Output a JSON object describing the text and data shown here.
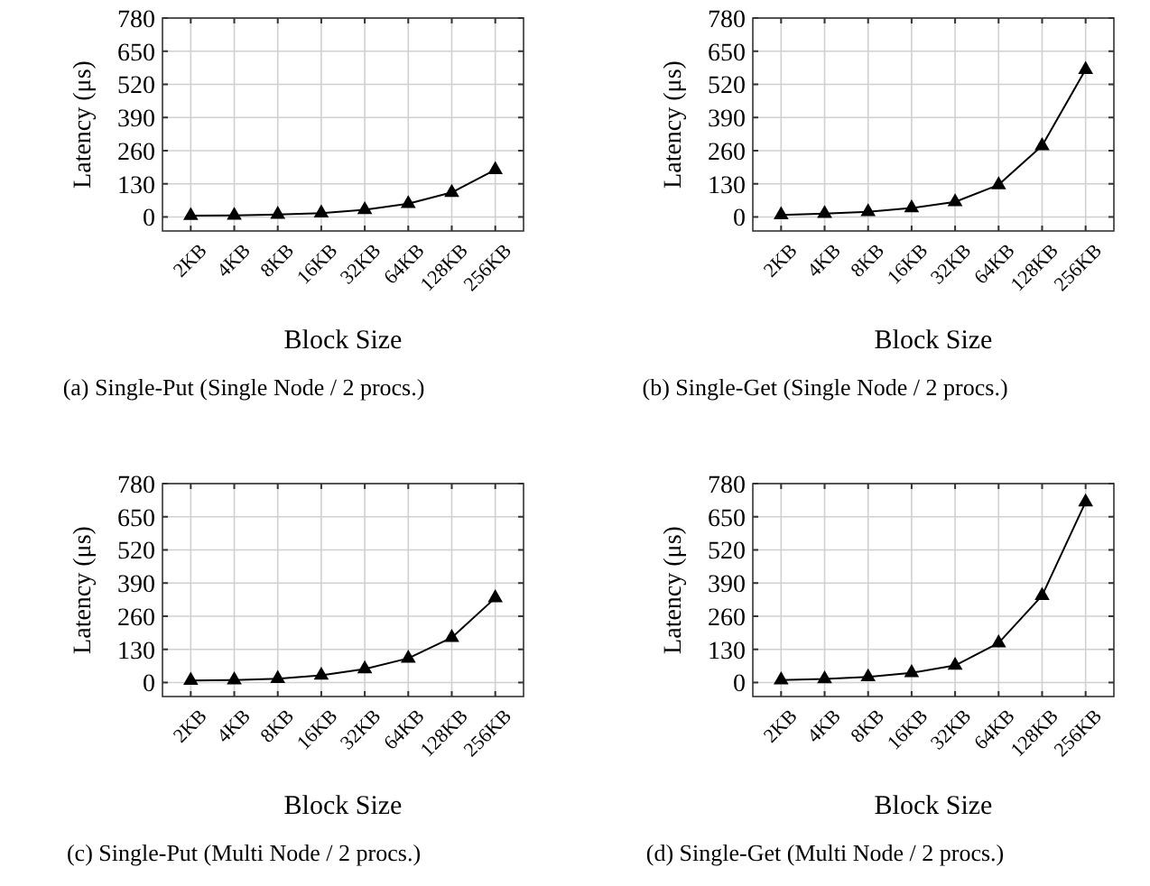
{
  "chart_data": [
    {
      "type": "line",
      "title": "(a) Single-Put (Single Node / 2 procs.)",
      "xlabel": "Block Size",
      "ylabel": "Latency (μs)",
      "categories": [
        "2KB",
        "4KB",
        "8KB",
        "16KB",
        "32KB",
        "64KB",
        "128KB",
        "256KB"
      ],
      "series": [
        {
          "color": "#000000",
          "values": [
            5,
            6,
            10,
            15,
            28,
            52,
            96,
            185
          ]
        }
      ],
      "ylim": [
        -55,
        780
      ],
      "yticks": [
        0,
        130,
        260,
        390,
        520,
        650,
        780
      ],
      "grid": true,
      "marker": "triangle",
      "line_style": "solid"
    },
    {
      "type": "line",
      "title": "(b) Single-Get (Single Node / 2 procs.)",
      "xlabel": "Block Size",
      "ylabel": "Latency (μs)",
      "categories": [
        "2KB",
        "4KB",
        "8KB",
        "16KB",
        "32KB",
        "64KB",
        "128KB",
        "256KB"
      ],
      "series": [
        {
          "color": "#000000",
          "values": [
            8,
            13,
            20,
            35,
            59,
            126,
            279,
            578
          ]
        }
      ],
      "ylim": [
        -55,
        780
      ],
      "yticks": [
        0,
        130,
        260,
        390,
        520,
        650,
        780
      ],
      "grid": true,
      "marker": "triangle",
      "line_style": "solid"
    },
    {
      "type": "line",
      "title": "(c) Single-Put (Multi Node / 2 procs.)",
      "xlabel": "Block Size",
      "ylabel": "Latency (μs)",
      "categories": [
        "2KB",
        "4KB",
        "8KB",
        "16KB",
        "32KB",
        "64KB",
        "128KB",
        "256KB"
      ],
      "series": [
        {
          "color": "#000000",
          "values": [
            8,
            10,
            15,
            28,
            53,
            95,
            176,
            332
          ]
        }
      ],
      "ylim": [
        -55,
        780
      ],
      "yticks": [
        0,
        130,
        260,
        390,
        520,
        650,
        780
      ],
      "grid": true,
      "marker": "triangle",
      "line_style": "solid"
    },
    {
      "type": "line",
      "title": "(d) Single-Get (Multi Node / 2 procs.)",
      "xlabel": "Block Size",
      "ylabel": "Latency (μs)",
      "categories": [
        "2KB",
        "4KB",
        "8KB",
        "16KB",
        "32KB",
        "64KB",
        "128KB",
        "256KB"
      ],
      "series": [
        {
          "color": "#000000",
          "values": [
            10,
            14,
            22,
            38,
            67,
            155,
            341,
            708
          ]
        }
      ],
      "ylim": [
        -55,
        780
      ],
      "yticks": [
        0,
        130,
        260,
        390,
        520,
        650,
        780
      ],
      "grid": true,
      "marker": "triangle",
      "line_style": "solid"
    }
  ]
}
